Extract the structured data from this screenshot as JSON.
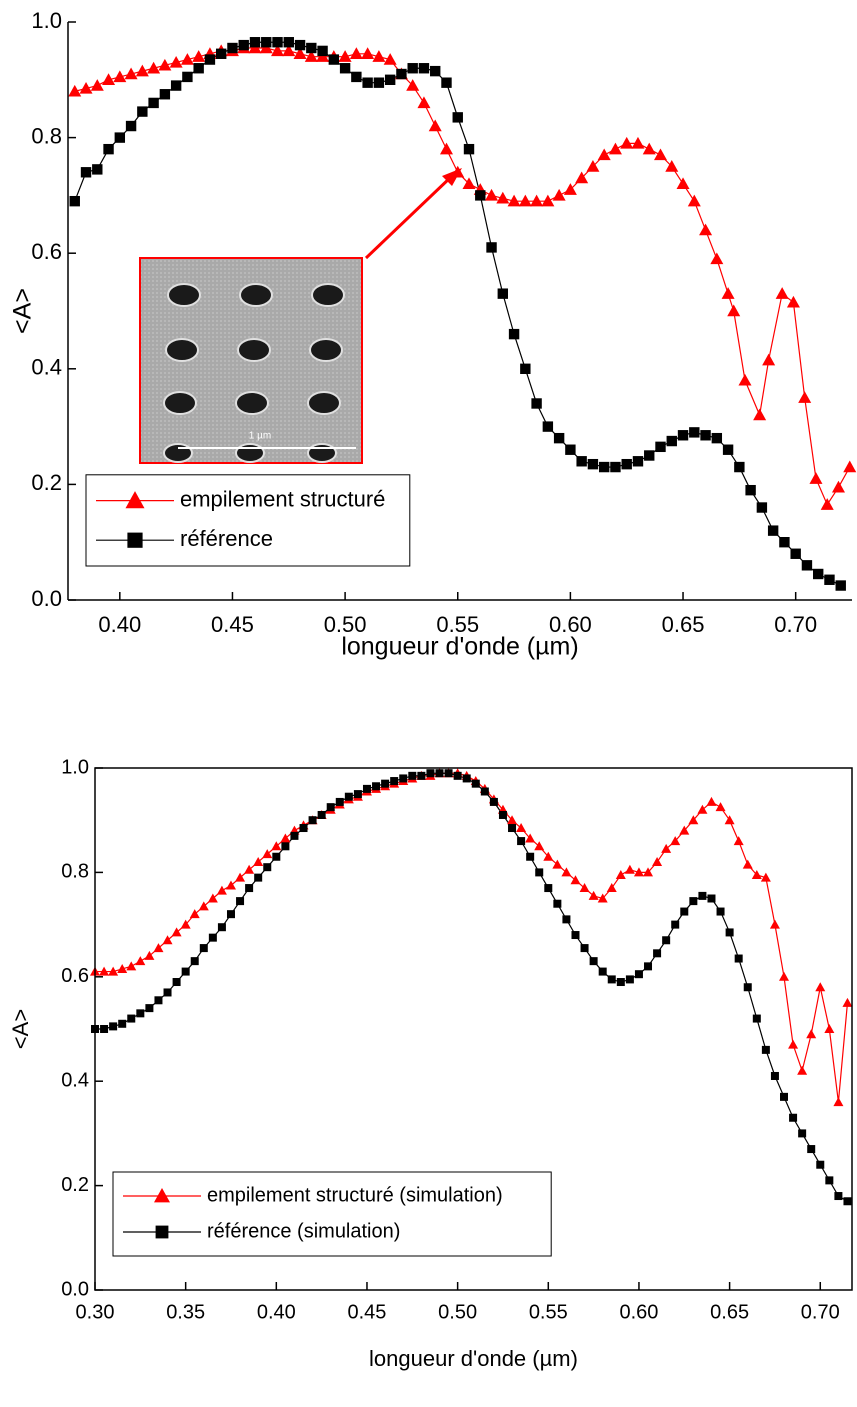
{
  "chart_data": [
    {
      "type": "line",
      "xlabel": "longueur d'onde (µm)",
      "ylabel": "<A>",
      "annotation": "1 µm",
      "xlim": [
        0.377,
        0.725
      ],
      "ylim": [
        0,
        1
      ],
      "xticks": [
        {
          "value": 0.4,
          "label": "0.40"
        },
        0.45,
        {
          "value": 0.5,
          "label": "0.50"
        },
        0.55,
        {
          "value": 0.6,
          "label": "0.60"
        },
        0.65,
        {
          "value": 0.7,
          "label": "0.70"
        }
      ],
      "yticks": [
        {
          "value": 0,
          "label": "0.0"
        },
        0.2,
        0.4,
        0.6,
        0.8,
        {
          "value": 1,
          "label": "1.0"
        }
      ],
      "legend": "lower left",
      "series": [
        {
          "name": "empilement structuré",
          "color": "#ff0000",
          "marker": "triangle",
          "x": [
            0.38,
            0.385,
            0.39,
            0.395,
            0.4,
            0.405,
            0.41,
            0.415,
            0.42,
            0.425,
            0.43,
            0.435,
            0.44,
            0.445,
            0.45,
            0.455,
            0.46,
            0.465,
            0.47,
            0.475,
            0.48,
            0.485,
            0.49,
            0.495,
            0.5,
            0.505,
            0.51,
            0.515,
            0.52,
            0.525,
            0.53,
            0.535,
            0.54,
            0.545,
            0.55,
            0.555,
            0.56,
            0.565,
            0.57,
            0.575,
            0.58,
            0.585,
            0.59,
            0.595,
            0.6,
            0.605,
            0.61,
            0.615,
            0.62,
            0.625,
            0.63,
            0.635,
            0.64,
            0.645,
            0.65,
            0.655,
            0.66,
            0.665,
            0.67,
            0.6725,
            0.6775,
            0.684,
            0.688,
            0.694,
            0.699,
            0.704,
            0.709,
            0.714,
            0.719,
            0.724
          ],
          "values": [
            0.88,
            0.885,
            0.89,
            0.9,
            0.905,
            0.91,
            0.915,
            0.92,
            0.925,
            0.93,
            0.935,
            0.94,
            0.945,
            0.95,
            0.95,
            0.955,
            0.955,
            0.955,
            0.95,
            0.95,
            0.945,
            0.94,
            0.94,
            0.94,
            0.94,
            0.945,
            0.945,
            0.94,
            0.935,
            0.91,
            0.89,
            0.86,
            0.82,
            0.78,
            0.74,
            0.72,
            0.71,
            0.7,
            0.695,
            0.69,
            0.69,
            0.69,
            0.69,
            0.7,
            0.71,
            0.73,
            0.75,
            0.77,
            0.78,
            0.79,
            0.79,
            0.78,
            0.77,
            0.75,
            0.72,
            0.69,
            0.64,
            0.59,
            0.53,
            0.5,
            0.38,
            0.32,
            0.415,
            0.53,
            0.515,
            0.35,
            0.21,
            0.165,
            0.195,
            0.23
          ]
        },
        {
          "name": "référence",
          "color": "#000000",
          "marker": "square",
          "x": [
            0.38,
            0.385,
            0.39,
            0.395,
            0.4,
            0.405,
            0.41,
            0.415,
            0.42,
            0.425,
            0.43,
            0.435,
            0.44,
            0.445,
            0.45,
            0.455,
            0.46,
            0.465,
            0.47,
            0.475,
            0.48,
            0.485,
            0.49,
            0.495,
            0.5,
            0.505,
            0.51,
            0.515,
            0.52,
            0.525,
            0.53,
            0.535,
            0.54,
            0.545,
            0.55,
            0.555,
            0.56,
            0.565,
            0.57,
            0.575,
            0.58,
            0.585,
            0.59,
            0.595,
            0.6,
            0.605,
            0.61,
            0.615,
            0.62,
            0.625,
            0.63,
            0.635,
            0.64,
            0.645,
            0.65,
            0.655,
            0.66,
            0.665,
            0.67,
            0.675,
            0.68,
            0.685,
            0.69,
            0.695,
            0.7,
            0.705,
            0.71,
            0.715,
            0.72
          ],
          "values": [
            0.69,
            0.74,
            0.745,
            0.78,
            0.8,
            0.82,
            0.845,
            0.86,
            0.875,
            0.89,
            0.905,
            0.92,
            0.935,
            0.945,
            0.955,
            0.96,
            0.965,
            0.965,
            0.965,
            0.965,
            0.96,
            0.955,
            0.95,
            0.935,
            0.92,
            0.905,
            0.895,
            0.895,
            0.9,
            0.91,
            0.92,
            0.92,
            0.915,
            0.895,
            0.835,
            0.78,
            0.7,
            0.61,
            0.53,
            0.46,
            0.4,
            0.34,
            0.3,
            0.28,
            0.26,
            0.24,
            0.235,
            0.23,
            0.23,
            0.235,
            0.24,
            0.25,
            0.265,
            0.275,
            0.285,
            0.29,
            0.285,
            0.28,
            0.26,
            0.23,
            0.19,
            0.16,
            0.12,
            0.1,
            0.08,
            0.06,
            0.045,
            0.035,
            0.025
          ]
        }
      ]
    },
    {
      "type": "line",
      "xlabel": "longueur d'onde (µm)",
      "ylabel": "<A>",
      "xlim": [
        0.3,
        0.7175
      ],
      "ylim": [
        0,
        1
      ],
      "xticks": [
        {
          "value": 0.3,
          "label": "0.30"
        },
        0.35,
        {
          "value": 0.4,
          "label": "0.40"
        },
        0.45,
        {
          "value": 0.5,
          "label": "0.50"
        },
        0.55,
        {
          "value": 0.6,
          "label": "0.60"
        },
        0.65,
        {
          "value": 0.7,
          "label": "0.70"
        }
      ],
      "yticks": [
        {
          "value": 0,
          "label": "0.0"
        },
        0.2,
        0.4,
        0.6,
        0.8,
        {
          "value": 1,
          "label": "1.0"
        }
      ],
      "legend": "lower left",
      "x": [
        0.3,
        0.305,
        0.31,
        0.315,
        0.32,
        0.325,
        0.33,
        0.335,
        0.34,
        0.345,
        0.35,
        0.355,
        0.36,
        0.365,
        0.37,
        0.375,
        0.38,
        0.385,
        0.39,
        0.395,
        0.4,
        0.405,
        0.41,
        0.415,
        0.42,
        0.425,
        0.43,
        0.435,
        0.44,
        0.445,
        0.45,
        0.455,
        0.46,
        0.465,
        0.47,
        0.475,
        0.48,
        0.485,
        0.49,
        0.495,
        0.5,
        0.505,
        0.51,
        0.515,
        0.52,
        0.525,
        0.53,
        0.535,
        0.54,
        0.545,
        0.55,
        0.555,
        0.56,
        0.565,
        0.57,
        0.575,
        0.58,
        0.585,
        0.59,
        0.595,
        0.6,
        0.605,
        0.61,
        0.615,
        0.62,
        0.625,
        0.63,
        0.635,
        0.64,
        0.645,
        0.65,
        0.655,
        0.66,
        0.665,
        0.67,
        0.675,
        0.68,
        0.685,
        0.69,
        0.695,
        0.7,
        0.705,
        0.71,
        0.715
      ],
      "series": [
        {
          "name": "empilement structuré (simulation)",
          "color": "#ff0000",
          "marker": "triangle",
          "values": [
            0.61,
            0.61,
            0.61,
            0.615,
            0.62,
            0.63,
            0.64,
            0.655,
            0.67,
            0.685,
            0.7,
            0.72,
            0.735,
            0.75,
            0.765,
            0.775,
            0.79,
            0.805,
            0.82,
            0.835,
            0.85,
            0.865,
            0.88,
            0.89,
            0.9,
            0.91,
            0.92,
            0.93,
            0.94,
            0.945,
            0.955,
            0.96,
            0.965,
            0.97,
            0.975,
            0.98,
            0.985,
            0.985,
            0.99,
            0.99,
            0.99,
            0.985,
            0.975,
            0.96,
            0.94,
            0.92,
            0.9,
            0.885,
            0.865,
            0.85,
            0.83,
            0.815,
            0.8,
            0.785,
            0.77,
            0.755,
            0.75,
            0.77,
            0.795,
            0.805,
            0.8,
            0.8,
            0.82,
            0.845,
            0.86,
            0.88,
            0.9,
            0.92,
            0.935,
            0.925,
            0.9,
            0.86,
            0.815,
            0.795,
            0.79,
            0.7,
            0.6,
            0.47,
            0.42,
            0.49,
            0.58,
            0.5,
            0.36,
            0.55
          ]
        },
        {
          "name": "référence (simulation)",
          "color": "#000000",
          "marker": "square",
          "values": [
            0.5,
            0.5,
            0.505,
            0.51,
            0.52,
            0.53,
            0.54,
            0.555,
            0.57,
            0.59,
            0.61,
            0.63,
            0.655,
            0.675,
            0.695,
            0.72,
            0.745,
            0.77,
            0.79,
            0.81,
            0.83,
            0.85,
            0.87,
            0.885,
            0.9,
            0.91,
            0.925,
            0.935,
            0.945,
            0.95,
            0.96,
            0.965,
            0.97,
            0.975,
            0.98,
            0.985,
            0.985,
            0.99,
            0.99,
            0.99,
            0.985,
            0.98,
            0.97,
            0.955,
            0.935,
            0.91,
            0.885,
            0.86,
            0.83,
            0.8,
            0.77,
            0.74,
            0.71,
            0.68,
            0.655,
            0.63,
            0.61,
            0.595,
            0.59,
            0.595,
            0.605,
            0.62,
            0.645,
            0.67,
            0.7,
            0.725,
            0.745,
            0.755,
            0.75,
            0.725,
            0.685,
            0.635,
            0.58,
            0.52,
            0.46,
            0.41,
            0.37,
            0.33,
            0.3,
            0.27,
            0.24,
            0.21,
            0.18,
            0.17
          ]
        }
      ]
    }
  ]
}
